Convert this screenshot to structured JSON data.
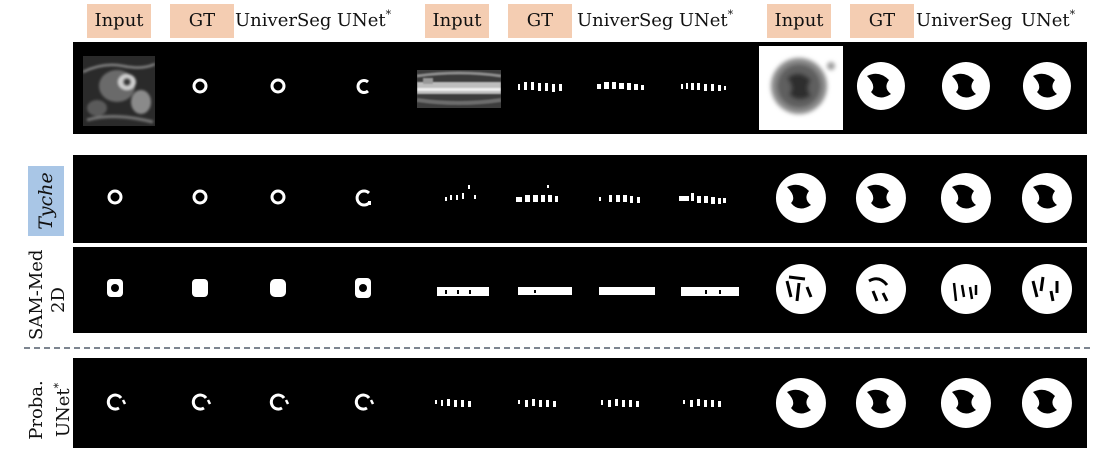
{
  "headers": [
    {
      "text": "Input",
      "tag": true
    },
    {
      "text": "GT",
      "tag": true
    },
    {
      "text": "UniverSeg",
      "tag": false
    },
    {
      "text": "UNet",
      "sup": "*",
      "tag": false
    },
    {
      "text": "Input",
      "tag": true
    },
    {
      "text": "GT",
      "tag": true
    },
    {
      "text": "UniverSeg",
      "tag": false
    },
    {
      "text": "UNet",
      "sup": "*",
      "tag": false
    },
    {
      "text": "Input",
      "tag": true
    },
    {
      "text": "GT",
      "tag": true
    },
    {
      "text": "UniverSeg",
      "tag": false
    },
    {
      "text": "UNet",
      "sup": "*",
      "tag": false
    }
  ],
  "row_labels": {
    "tyche": "Tyche",
    "sam_line1": "SAM-Med",
    "sam_line2": "2D",
    "proba_line1": "Proba.",
    "proba_line2": "UNet",
    "proba_sup": "*"
  },
  "colors": {
    "tag_background": "#f4cdb2",
    "tyche_background": "#a9c6e6",
    "band_background": "#000000",
    "mask": "#ffffff",
    "separator": "#7d8590"
  }
}
